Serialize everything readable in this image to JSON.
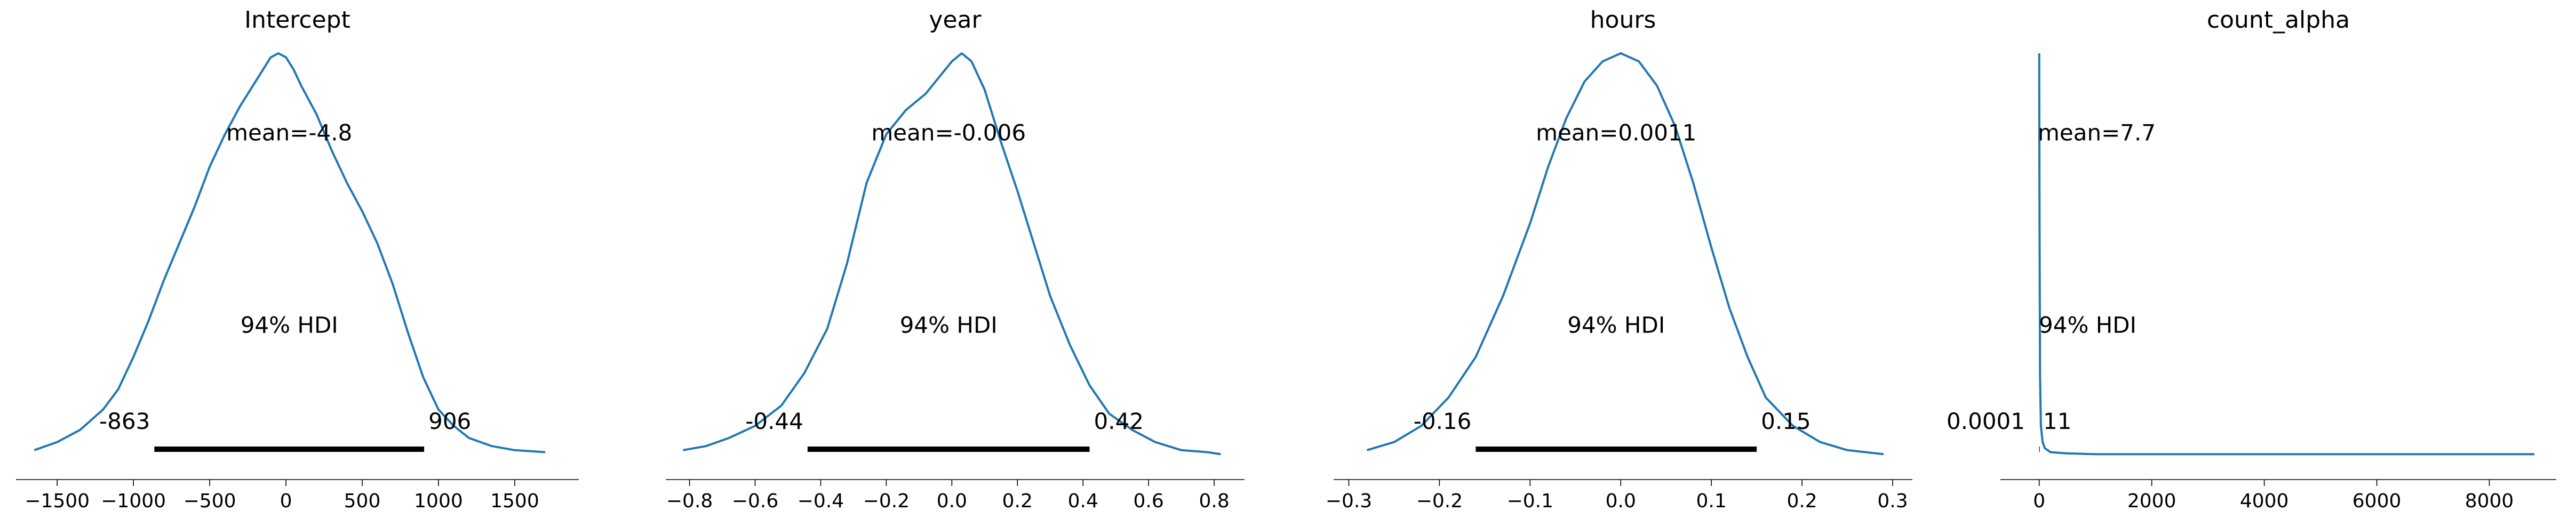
{
  "colors": {
    "line": "#1f77b4",
    "hdi": "#000000",
    "axis": "#000000"
  },
  "chart_data": [
    {
      "type": "line",
      "title": "Intercept",
      "mean_label": "mean=-4.8",
      "hdi_label": "94% HDI",
      "hdi_low_label": "-863",
      "hdi_high_label": "906",
      "hdi": [
        -863,
        906
      ],
      "xlim": [
        -1700,
        1850
      ],
      "ylim": [
        0,
        1
      ],
      "xticks": [
        -1500,
        -1000,
        -500,
        0,
        500,
        1000,
        1500
      ],
      "xtick_labels": [
        "−1500",
        "−1000",
        "−500",
        "0",
        "500",
        "1000",
        "1500"
      ],
      "x": [
        -1650,
        -1500,
        -1350,
        -1200,
        -1100,
        -1000,
        -900,
        -800,
        -700,
        -600,
        -500,
        -400,
        -300,
        -200,
        -100,
        -50,
        0,
        50,
        100,
        200,
        300,
        400,
        500,
        600,
        700,
        800,
        900,
        1000,
        1100,
        1200,
        1350,
        1500,
        1700
      ],
      "y": [
        0.02,
        0.04,
        0.07,
        0.12,
        0.17,
        0.25,
        0.34,
        0.44,
        0.53,
        0.62,
        0.72,
        0.8,
        0.87,
        0.93,
        0.99,
        1.0,
        0.99,
        0.96,
        0.92,
        0.85,
        0.76,
        0.68,
        0.61,
        0.53,
        0.43,
        0.31,
        0.2,
        0.12,
        0.08,
        0.05,
        0.03,
        0.02,
        0.015
      ]
    },
    {
      "type": "line",
      "title": "year",
      "mean_label": "mean=-0.006",
      "hdi_label": "94% HDI",
      "hdi_low_label": "-0.44",
      "hdi_high_label": "0.42",
      "hdi": [
        -0.44,
        0.42
      ],
      "xlim": [
        -0.84,
        0.86
      ],
      "ylim": [
        0,
        1
      ],
      "xticks": [
        -0.8,
        -0.6,
        -0.4,
        -0.2,
        0.0,
        0.2,
        0.4,
        0.6,
        0.8
      ],
      "xtick_labels": [
        "−0.8",
        "−0.6",
        "−0.4",
        "−0.2",
        "0.0",
        "0.2",
        "0.4",
        "0.6",
        "0.8"
      ],
      "x": [
        -0.82,
        -0.75,
        -0.68,
        -0.6,
        -0.52,
        -0.45,
        -0.38,
        -0.32,
        -0.26,
        -0.2,
        -0.14,
        -0.08,
        -0.04,
        0.0,
        0.03,
        0.06,
        0.1,
        0.15,
        0.2,
        0.25,
        0.3,
        0.36,
        0.42,
        0.48,
        0.55,
        0.62,
        0.7,
        0.78,
        0.82
      ],
      "y": [
        0.02,
        0.03,
        0.05,
        0.08,
        0.13,
        0.21,
        0.32,
        0.48,
        0.68,
        0.8,
        0.86,
        0.9,
        0.94,
        0.98,
        1.0,
        0.98,
        0.91,
        0.78,
        0.66,
        0.53,
        0.4,
        0.28,
        0.18,
        0.11,
        0.07,
        0.04,
        0.02,
        0.015,
        0.01
      ]
    },
    {
      "type": "line",
      "title": "hours",
      "mean_label": "mean=0.0011",
      "hdi_label": "94% HDI",
      "hdi_low_label": "-0.16",
      "hdi_high_label": "0.15",
      "hdi": [
        -0.16,
        0.15
      ],
      "xlim": [
        -0.305,
        0.31
      ],
      "ylim": [
        0,
        1
      ],
      "xticks": [
        -0.3,
        -0.2,
        -0.1,
        0.0,
        0.1,
        0.2,
        0.3
      ],
      "xtick_labels": [
        "−0.3",
        "−0.2",
        "−0.1",
        "0.0",
        "0.1",
        "0.2",
        "0.3"
      ],
      "x": [
        -0.28,
        -0.25,
        -0.22,
        -0.19,
        -0.16,
        -0.13,
        -0.1,
        -0.08,
        -0.06,
        -0.04,
        -0.02,
        0.0,
        0.02,
        0.04,
        0.06,
        0.08,
        0.1,
        0.12,
        0.14,
        0.16,
        0.19,
        0.22,
        0.25,
        0.29
      ],
      "y": [
        0.02,
        0.04,
        0.08,
        0.15,
        0.25,
        0.4,
        0.58,
        0.72,
        0.84,
        0.93,
        0.98,
        1.0,
        0.98,
        0.92,
        0.82,
        0.68,
        0.52,
        0.37,
        0.25,
        0.15,
        0.08,
        0.04,
        0.02,
        0.01
      ]
    },
    {
      "type": "line",
      "title": "count_alpha",
      "mean_label": "mean=7.7",
      "hdi_label": "94% HDI",
      "hdi_low_label": "0.0001",
      "hdi_high_label": "11",
      "hdi": [
        0.0001,
        11
      ],
      "xlim": [
        -500,
        9000
      ],
      "ylim": [
        0,
        1
      ],
      "xticks": [
        0,
        2000,
        4000,
        6000,
        8000
      ],
      "xtick_labels": [
        "0",
        "2000",
        "4000",
        "6000",
        "8000"
      ],
      "x": [
        0,
        5,
        15,
        30,
        60,
        100,
        200,
        500,
        1000,
        3000,
        6000,
        8800
      ],
      "y": [
        1.0,
        0.6,
        0.2,
        0.08,
        0.04,
        0.025,
        0.015,
        0.012,
        0.01,
        0.01,
        0.01,
        0.01
      ]
    }
  ]
}
